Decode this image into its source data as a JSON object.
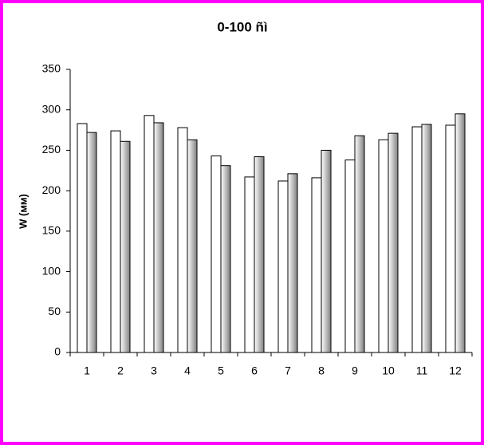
{
  "chart_data": {
    "type": "bar",
    "title": "0-100 ñì",
    "y_label": "W (мм)",
    "categories": [
      "1",
      "2",
      "3",
      "4",
      "5",
      "6",
      "7",
      "8",
      "9",
      "10",
      "11",
      "12"
    ],
    "series": [
      {
        "color": "#ffffff",
        "values": [
          283,
          274,
          293,
          278,
          243,
          217,
          212,
          216,
          238,
          263,
          279,
          281
        ]
      },
      {
        "color": "#808080",
        "values": [
          272,
          261,
          284,
          263,
          231,
          242,
          221,
          250,
          268,
          271,
          282,
          295
        ]
      }
    ],
    "ylim": [
      0,
      350
    ],
    "yticks": [
      0,
      50,
      100,
      150,
      200,
      250,
      300,
      350
    ],
    "grid": false
  }
}
